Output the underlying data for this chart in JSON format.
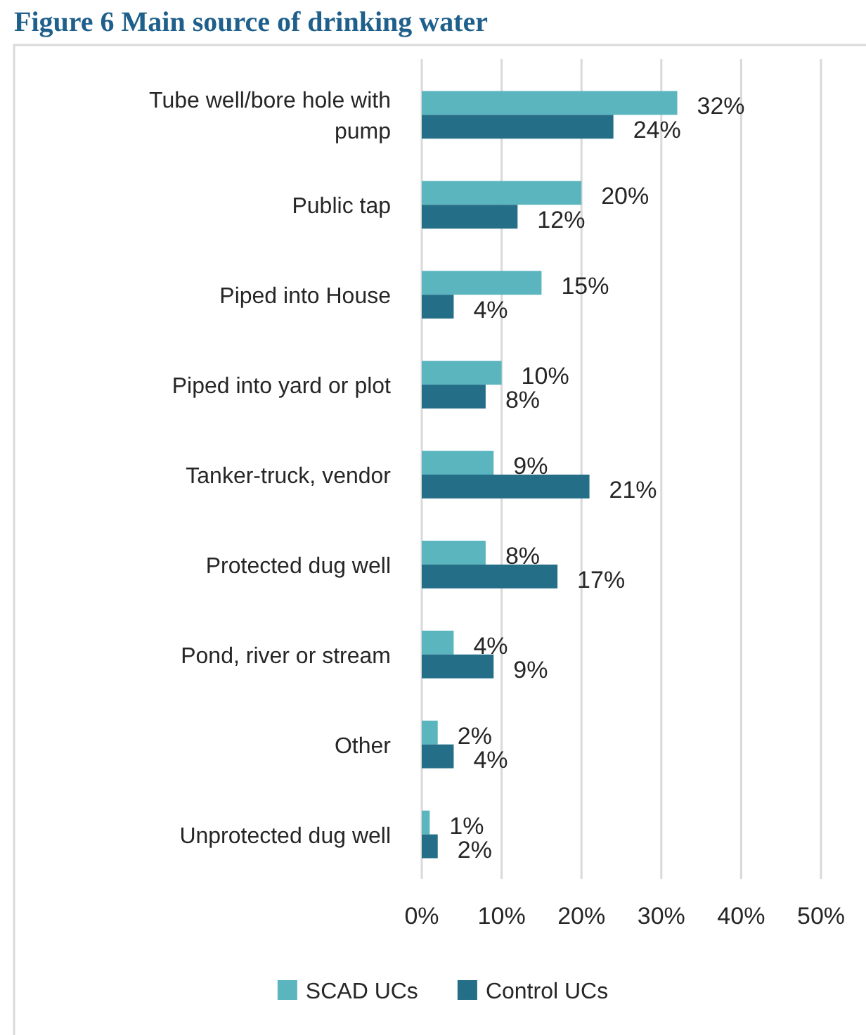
{
  "chart_data": {
    "type": "bar",
    "orientation": "horizontal",
    "title": "Figure 6 Main source of drinking water",
    "categories": [
      "Tube well/bore hole with pump",
      "Public tap",
      "Piped into House",
      "Piped into yard or plot",
      "Tanker-truck, vendor",
      "Protected dug well",
      "Pond, river or stream",
      "Other",
      "Unprotected dug well"
    ],
    "series": [
      {
        "name": "SCAD UCs",
        "color": "#5ab5bf",
        "values": [
          32,
          20,
          15,
          10,
          9,
          8,
          4,
          2,
          1
        ],
        "value_labels": [
          "32%",
          "20%",
          "15%",
          "10%",
          "9%",
          "8%",
          "4%",
          "2%",
          "1%"
        ]
      },
      {
        "name": "Control UCs",
        "color": "#246e87",
        "values": [
          24,
          12,
          4,
          8,
          21,
          17,
          9,
          4,
          2
        ],
        "value_labels": [
          "24%",
          "12%",
          "4%",
          "8%",
          "21%",
          "17%",
          "9%",
          "4%",
          "2%"
        ]
      }
    ],
    "xlim": [
      0,
      50
    ],
    "xticks": [
      {
        "value": 0,
        "label": "0%"
      },
      {
        "value": 10,
        "label": "10%"
      },
      {
        "value": 20,
        "label": "20%"
      },
      {
        "value": 30,
        "label": "30%"
      },
      {
        "value": 40,
        "label": "40%"
      },
      {
        "value": 50,
        "label": "50%"
      }
    ],
    "grid": "x",
    "legend": "bottom"
  }
}
